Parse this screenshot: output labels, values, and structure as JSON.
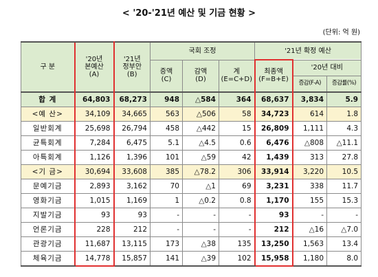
{
  "title": "< '20-'21년 예산 및 기금 현황 >",
  "unit": "(단위: 억 원)",
  "table": {
    "header": {
      "category": "구  분",
      "budget_2020": [
        "'20년",
        "본예산",
        "(A)"
      ],
      "proposal_2021": [
        "'21년",
        "정부안",
        "(B)"
      ],
      "assembly": "국회 조정",
      "increase": [
        "증액",
        "(C)"
      ],
      "decrease": [
        "감액",
        "(D)"
      ],
      "net": [
        "계",
        "(E=C+D)"
      ],
      "final_budget": "'21년 확정 예산",
      "final": [
        "최종액",
        "(F=B+E)"
      ],
      "vs_2020": "'20년 대비",
      "change": "증감(F-A)",
      "rate": "증감률(%)"
    },
    "rows": [
      [
        "합  계",
        "64,803",
        "68,273",
        "948",
        "△584",
        "364",
        "68,637",
        "3,834",
        "5.9"
      ],
      [
        "<예  산>",
        "34,109",
        "34,665",
        "563",
        "△506",
        "58",
        "34,723",
        "614",
        "1.8"
      ],
      [
        "일반회계",
        "25,698",
        "26,794",
        "458",
        "△442",
        "15",
        "26,809",
        "1,111",
        "4.3"
      ],
      [
        "균특회계",
        "7,284",
        "6,475",
        "5.1",
        "△4.5",
        "0.6",
        "6,476",
        "△808",
        "△11.1"
      ],
      [
        "아특회계",
        "1,126",
        "1,396",
        "101",
        "△59",
        "42",
        "1,439",
        "313",
        "27.8"
      ],
      [
        "<기  금>",
        "30,694",
        "33,608",
        "385",
        "△78.2",
        "306",
        "33,914",
        "3,220",
        "10.5"
      ],
      [
        "문예기금",
        "2,893",
        "3,162",
        "70",
        "△1",
        "69",
        "3,231",
        "338",
        "11.7"
      ],
      [
        "영화기금",
        "1,015",
        "1,169",
        "1",
        "△0.2",
        "0.8",
        "1,170",
        "155",
        "15.3"
      ],
      [
        "지발기금",
        "93",
        "93",
        "-",
        "-",
        "-",
        "93",
        "-",
        "-"
      ],
      [
        "언론기금",
        "228",
        "212",
        "-",
        "-",
        "-",
        "212",
        "△16",
        "△7.0"
      ],
      [
        "관광기금",
        "11,687",
        "13,115",
        "173",
        "△38",
        "135",
        "13,250",
        "1,563",
        "13.4"
      ],
      [
        "체육기금",
        "14,778",
        "15,857",
        "141",
        "△39",
        "102",
        "15,958",
        "1,180",
        "8.0"
      ]
    ]
  }
}
